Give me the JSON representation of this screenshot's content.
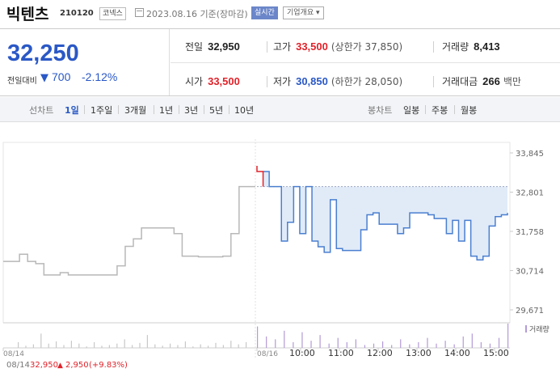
{
  "header": {
    "name": "빅텐츠",
    "code": "210120",
    "market": "코넥스",
    "date": "2023.08.16 기준(장마감)",
    "realtime": "실시간",
    "company_info": "기업개요 ▾"
  },
  "summary": {
    "price": "32,250",
    "change_label": "전일대비",
    "change_arrow": "▼",
    "change_amount": "700",
    "change_percent": "-2.12%",
    "prev_close_label": "전일",
    "prev_close": "32,950",
    "high_label": "고가",
    "high": "33,500",
    "upper_limit": "(상한가 37,850)",
    "volume_label": "거래량",
    "volume": "8,413",
    "open_label": "시가",
    "open": "33,500",
    "low_label": "저가",
    "low": "30,850",
    "lower_limit": "(하한가 28,050)",
    "amount_label": "거래대금",
    "amount": "266",
    "amount_unit": "백만"
  },
  "tabs": {
    "line_chart_label": "선차트",
    "line_periods": [
      "1일",
      "1주일",
      "3개월",
      "1년",
      "3년",
      "5년",
      "10년"
    ],
    "active_period": "1일",
    "candle_chart_label": "봉차트",
    "candle_periods": [
      "일봉",
      "주봉",
      "월봉"
    ]
  },
  "chart_data": {
    "type": "line",
    "y_ticks": [
      "33,845",
      "32,801",
      "31,758",
      "30,714",
      "29,671"
    ],
    "ylim": [
      29671,
      33845
    ],
    "reference_line": 32950,
    "x_ticks": [
      "08/14",
      "08/16",
      "10:00",
      "11:00",
      "12:00",
      "13:00",
      "14:00",
      "15:00"
    ],
    "volume_legend": "거래량",
    "footer": {
      "date": "08/14",
      "price": "32,950",
      "arrow": "▲",
      "change": "2,950",
      "percent": "(+9.83%)"
    },
    "colors": {
      "history_line": "#b8b8b8",
      "today_line": "#4a7fd0",
      "fill": "#dce7f7",
      "up": "#e0222a",
      "volume": "#b39ad6"
    },
    "history_series": [
      [
        0,
        30960
      ],
      [
        1,
        30960
      ],
      [
        2,
        31150
      ],
      [
        3,
        30960
      ],
      [
        4,
        30900
      ],
      [
        5,
        30600
      ],
      [
        6,
        30600
      ],
      [
        7,
        30660
      ],
      [
        8,
        30600
      ],
      [
        9,
        30600
      ],
      [
        10,
        30600
      ],
      [
        11,
        30600
      ],
      [
        12,
        30600
      ],
      [
        13,
        30600
      ],
      [
        14,
        30840
      ],
      [
        15,
        31360
      ],
      [
        16,
        31560
      ],
      [
        17,
        31850
      ],
      [
        18,
        31850
      ],
      [
        19,
        31850
      ],
      [
        20,
        31850
      ],
      [
        21,
        31700
      ],
      [
        22,
        31100
      ],
      [
        23,
        31100
      ],
      [
        24,
        31080
      ],
      [
        25,
        31080
      ],
      [
        26,
        31080
      ],
      [
        27,
        31100
      ],
      [
        28,
        31700
      ],
      [
        29,
        32950
      ],
      [
        30,
        32950
      ],
      [
        31,
        32950
      ]
    ],
    "today_series": [
      [
        0,
        33500
      ],
      [
        1,
        33350
      ],
      [
        2,
        32950
      ],
      [
        3,
        32950
      ],
      [
        4,
        31500
      ],
      [
        5,
        32000
      ],
      [
        6,
        32950
      ],
      [
        7,
        31700
      ],
      [
        8,
        32950
      ],
      [
        9,
        31500
      ],
      [
        10,
        31350
      ],
      [
        11,
        31200
      ],
      [
        12,
        32600
      ],
      [
        13,
        31300
      ],
      [
        14,
        31250
      ],
      [
        15,
        31250
      ],
      [
        16,
        31250
      ],
      [
        17,
        31800
      ],
      [
        18,
        32200
      ],
      [
        19,
        32250
      ],
      [
        20,
        31950
      ],
      [
        21,
        31950
      ],
      [
        22,
        31950
      ],
      [
        23,
        31700
      ],
      [
        24,
        31850
      ],
      [
        25,
        32250
      ],
      [
        26,
        32250
      ],
      [
        27,
        32250
      ],
      [
        28,
        32200
      ],
      [
        29,
        32100
      ],
      [
        30,
        32100
      ],
      [
        31,
        31700
      ],
      [
        32,
        32050
      ],
      [
        33,
        31500
      ],
      [
        34,
        32050
      ],
      [
        35,
        31100
      ],
      [
        36,
        31000
      ],
      [
        37,
        31100
      ],
      [
        38,
        31900
      ],
      [
        39,
        32150
      ],
      [
        40,
        32200
      ],
      [
        41,
        32250
      ]
    ],
    "volume_history": [
      [
        0,
        8
      ],
      [
        1,
        3
      ],
      [
        2,
        5
      ],
      [
        3,
        20
      ],
      [
        4,
        6
      ],
      [
        5,
        9
      ],
      [
        6,
        4
      ],
      [
        7,
        10
      ],
      [
        8,
        6
      ],
      [
        9,
        2
      ],
      [
        10,
        8
      ],
      [
        11,
        3
      ],
      [
        12,
        4
      ],
      [
        13,
        6
      ],
      [
        14,
        12
      ],
      [
        15,
        4
      ],
      [
        16,
        7
      ],
      [
        17,
        18
      ],
      [
        18,
        5
      ],
      [
        19,
        3
      ],
      [
        20,
        6
      ],
      [
        21,
        4
      ],
      [
        22,
        9
      ],
      [
        23,
        2
      ],
      [
        24,
        5
      ],
      [
        25,
        3
      ],
      [
        26,
        7
      ],
      [
        27,
        4
      ],
      [
        28,
        10
      ],
      [
        29,
        5
      ],
      [
        30,
        8
      ]
    ],
    "volume_today": [
      [
        0,
        30
      ],
      [
        1,
        16
      ],
      [
        2,
        12
      ],
      [
        3,
        24
      ],
      [
        4,
        8
      ],
      [
        5,
        22
      ],
      [
        6,
        10
      ],
      [
        7,
        18
      ],
      [
        8,
        6
      ],
      [
        9,
        14
      ],
      [
        10,
        8
      ],
      [
        11,
        12
      ],
      [
        12,
        4
      ],
      [
        13,
        6
      ],
      [
        14,
        9
      ],
      [
        15,
        4
      ],
      [
        16,
        12
      ],
      [
        17,
        5
      ],
      [
        18,
        8
      ],
      [
        19,
        14
      ],
      [
        20,
        6
      ],
      [
        21,
        10
      ],
      [
        22,
        5
      ],
      [
        23,
        16
      ],
      [
        24,
        20
      ],
      [
        25,
        8
      ],
      [
        26,
        6
      ],
      [
        27,
        14
      ],
      [
        28,
        34
      ]
    ]
  }
}
